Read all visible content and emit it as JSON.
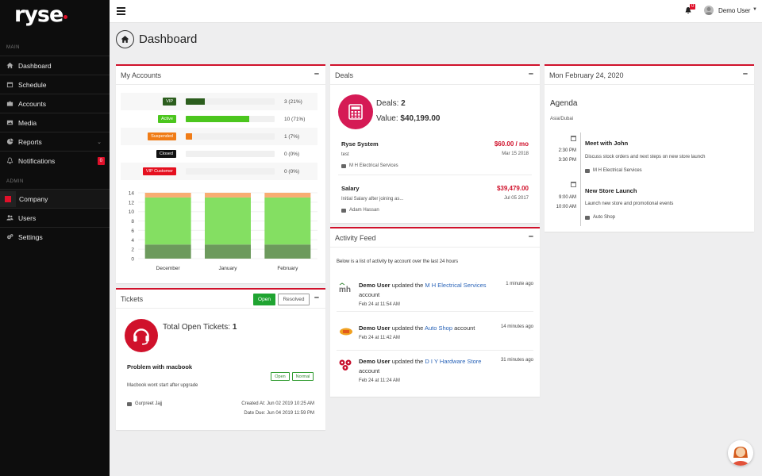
{
  "brand": {
    "logo": "ryse",
    "accent": "#d0112b"
  },
  "sidebar": {
    "main_label": "MAIN",
    "admin_label": "ADMIN",
    "items": [
      {
        "label": "Dashboard",
        "icon": "home-icon"
      },
      {
        "label": "Schedule",
        "icon": "calendar-icon"
      },
      {
        "label": "Accounts",
        "icon": "briefcase-icon"
      },
      {
        "label": "Media",
        "icon": "image-icon"
      },
      {
        "label": "Reports",
        "icon": "chart-icon"
      },
      {
        "label": "Notifications",
        "icon": "bell-icon",
        "badge": "0"
      }
    ],
    "admin_items": [
      {
        "label": "Company",
        "icon": "company-icon"
      },
      {
        "label": "Users",
        "icon": "users-icon"
      },
      {
        "label": "Settings",
        "icon": "gears-icon"
      }
    ]
  },
  "topbar": {
    "notif_count": "0",
    "user_name": "Demo User"
  },
  "page": {
    "title": "Dashboard"
  },
  "accounts": {
    "title": "My Accounts",
    "rows": [
      {
        "tag": "VIP",
        "color": "#2c5e1e",
        "fraction": 0.21,
        "value": "3 (21%)"
      },
      {
        "tag": "Active",
        "color": "#4cc61e",
        "fraction": 0.71,
        "value": "10 (71%)"
      },
      {
        "tag": "Suspended",
        "color": "#f07c17",
        "fraction": 0.07,
        "value": "1 (7%)"
      },
      {
        "tag": "Closed",
        "color": "#111111",
        "fraction": 0,
        "value": "0 (0%)"
      },
      {
        "tag": "VIP Customer",
        "color": "#e5101f",
        "fraction": 0,
        "value": "0 (0%)"
      }
    ]
  },
  "chart_data": {
    "type": "bar",
    "stacked": true,
    "categories": [
      "December",
      "January",
      "February"
    ],
    "series": [
      {
        "name": "VIP",
        "values": [
          3,
          3,
          3
        ],
        "color": "#6c9a5c"
      },
      {
        "name": "Active",
        "values": [
          10,
          10,
          10
        ],
        "color": "#84df62"
      },
      {
        "name": "Suspended",
        "values": [
          1,
          1,
          1
        ],
        "color": "#f8ad72"
      }
    ],
    "yticks": [
      "0",
      "2",
      "4",
      "6",
      "8",
      "10",
      "12",
      "14"
    ],
    "ylim": [
      0,
      14
    ]
  },
  "tickets": {
    "title": "Tickets",
    "open_label": "Open",
    "resolved_label": "Resolved",
    "total_label": "Total Open Tickets:",
    "total": "1",
    "problem": "Problem with macbook",
    "pill_status": "Open",
    "pill_priority": "Normal",
    "description": "Macbook wont start after upgrade",
    "assignee": "Gurpreet Jajj",
    "created": "Created At: Jun 02 2019 10:25 AM",
    "due": "Date Due: Jun 04 2019 11:59 PM"
  },
  "deals": {
    "title": "Deals",
    "count_label": "Deals:",
    "count": "2",
    "value_label": "Value:",
    "value": "$40,199.00",
    "items": [
      {
        "name": "Ryse System",
        "amount": "$60.00 / mo",
        "sub": "test",
        "date": "Mar 15 2018",
        "who": "M H Electrical Services"
      },
      {
        "name": "Salary",
        "amount": "$39,479.00",
        "sub": "Initial Salary after joining as...",
        "date": "Jul 05 2017",
        "who": "Adam Hassan"
      }
    ]
  },
  "activity": {
    "title": "Activity Feed",
    "intro": "Below is a list of activity by account over the last 24 hours",
    "items": [
      {
        "user": "Demo User",
        "verb": "updated the",
        "target": "M H Electrical Services",
        "tail": "account",
        "time": "1 minute ago",
        "date": "Feb 24 at 11:54 AM"
      },
      {
        "user": "Demo User",
        "verb": "updated the",
        "target": "Auto Shop",
        "tail": "account",
        "time": "14 minutes ago",
        "date": "Feb 24 at 11:42 AM"
      },
      {
        "user": "Demo User",
        "verb": "updated the",
        "target": "D I Y Hardware Store",
        "tail": "account",
        "time": "31 minutes ago",
        "date": "Feb 24 at 11:24 AM"
      }
    ]
  },
  "agenda": {
    "date_title": "Mon February 24, 2020",
    "title": "Agenda",
    "timezone": "Asia/Dubai",
    "events": [
      {
        "start": "2:30 PM",
        "end": "3:30 PM",
        "title": "Meet with John",
        "desc": "Discuss stock orders and next steps on new store launch",
        "who": "M H Electrical Services"
      },
      {
        "start": "9:00 AM",
        "end": "10:00 AM",
        "title": "New Store Launch",
        "desc": "Launch new store and promotional events",
        "who": "Auto Shop"
      }
    ]
  }
}
